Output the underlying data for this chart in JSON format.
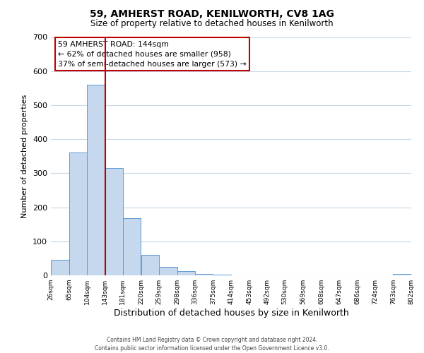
{
  "title": "59, AMHERST ROAD, KENILWORTH, CV8 1AG",
  "subtitle": "Size of property relative to detached houses in Kenilworth",
  "xlabel": "Distribution of detached houses by size in Kenilworth",
  "ylabel": "Number of detached properties",
  "bar_values": [
    45,
    360,
    560,
    315,
    168,
    60,
    25,
    12,
    5,
    3,
    0,
    0,
    0,
    0,
    0,
    0,
    0,
    0,
    0,
    4
  ],
  "bin_edges": [
    26,
    65,
    104,
    143,
    181,
    220,
    259,
    298,
    336,
    375,
    414,
    453,
    492,
    530,
    569,
    608,
    647,
    686,
    724,
    763,
    802
  ],
  "tick_labels": [
    "26sqm",
    "65sqm",
    "104sqm",
    "143sqm",
    "181sqm",
    "220sqm",
    "259sqm",
    "298sqm",
    "336sqm",
    "375sqm",
    "414sqm",
    "453sqm",
    "492sqm",
    "530sqm",
    "569sqm",
    "608sqm",
    "647sqm",
    "686sqm",
    "724sqm",
    "763sqm",
    "802sqm"
  ],
  "bar_color": "#c5d8ed",
  "bar_edge_color": "#5b9bd5",
  "property_line_x": 143,
  "property_line_color": "#c00000",
  "ylim": [
    0,
    700
  ],
  "yticks": [
    0,
    100,
    200,
    300,
    400,
    500,
    600,
    700
  ],
  "annotation_title": "59 AMHERST ROAD: 144sqm",
  "annotation_line1": "← 62% of detached houses are smaller (958)",
  "annotation_line2": "37% of semi-detached houses are larger (573) →",
  "annotation_box_color": "#ffffff",
  "annotation_box_edge_color": "#c00000",
  "footer_line1": "Contains HM Land Registry data © Crown copyright and database right 2024.",
  "footer_line2": "Contains public sector information licensed under the Open Government Licence v3.0.",
  "background_color": "#ffffff",
  "grid_color": "#c8d8e8"
}
